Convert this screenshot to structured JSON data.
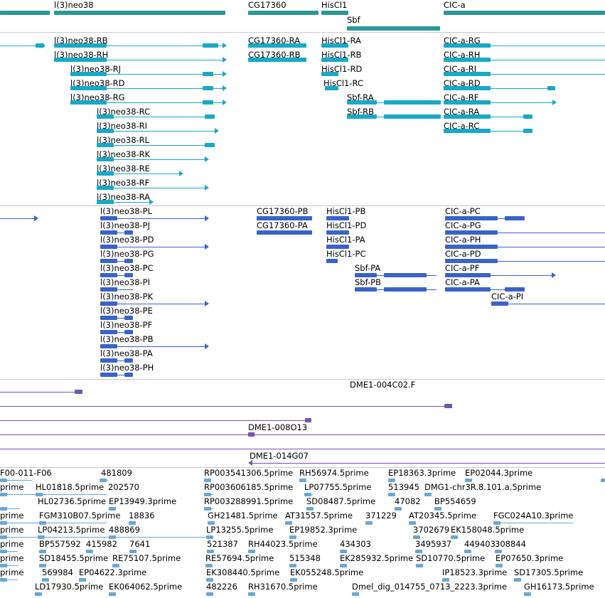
{
  "colors": {
    "gene": "#2a9797",
    "transcript": "#19a9c5",
    "protein": "#3a63c8",
    "clone": "#7852b0",
    "est": "#6aa7d3",
    "separator": "#c8c8c8"
  },
  "genes": [
    "l(3)neo38",
    "CG17360",
    "HisCl1",
    "Sbf",
    "CIC-a"
  ],
  "transcripts": [
    "l(3)neo38-RB",
    "CG17360-RA",
    "HisCl1-RA",
    "CIC-a-RG",
    "l(3)neo38-RH",
    "CG17360-RB",
    "HisCl1-RB",
    "CIC-a-RH",
    "l(3)neo38-RJ",
    "HisCl1-RD",
    "CIC-a-RI",
    "l(3)neo38-RD",
    "HisCl1-RC",
    "CIC-a-RD",
    "l(3)neo38-RG",
    "Sbf-RA",
    "CIC-a-RF",
    "l(3)neo38-RC",
    "Sbf-RB",
    "CIC-a-RA",
    "l(3)neo38-RI",
    "CIC-a-RC",
    "l(3)neo38-RL",
    "l(3)neo38-RK",
    "l(3)neo38-RE",
    "l(3)neo38-RF",
    "l(3)neo38-RA"
  ],
  "proteins": [
    "l(3)neo38-PL",
    "CG17360-PB",
    "HisCl1-PB",
    "CIC-a-PC",
    "l(3)neo38-PJ",
    "CG17360-PA",
    "HisCl1-PD",
    "CIC-a-PG",
    "l(3)neo38-PD",
    "HisCl1-PA",
    "CIC-a-PH",
    "l(3)neo38-PG",
    "HisCl1-PC",
    "CIC-a-PD",
    "l(3)neo38-PC",
    "Sbf-PA",
    "CIC-a-PF",
    "l(3)neo38-PI",
    "Sbf-PB",
    "CIC-a-PA",
    "l(3)neo38-PK",
    "CIC-a-PI",
    "l(3)neo38-PE",
    "l(3)neo38-PF",
    "l(3)neo38-PB",
    "l(3)neo38-PA",
    "l(3)neo38-PH"
  ],
  "clones": [
    "DME1-004C02.F",
    "DME1-008O13",
    "DME1-014G07"
  ],
  "ests": [
    "F00-011-F06",
    "481809",
    "RP003541306.5prime",
    "RH56974.5prime",
    "EP18363.3prime",
    "EP02044.3prime",
    "prime",
    "HL01818.5prime",
    "202570",
    "RP003606185.5prime",
    "LP07755.5prime",
    "513945",
    "DMG1-chr3R.8.101.a.5prime",
    "HL02736.5prime",
    "EP13949.3prime",
    "RP003288991.5prime",
    "SD08487.5prime",
    "47082",
    "BP554659",
    "FGM310B07.5prime",
    "18836",
    "GH21481.5prime",
    "AT31557.5prime",
    "371229",
    "AT20345.5prime",
    "FGC024A10.3prime",
    "LP04213.5prime",
    "488869",
    "LP13255.5prime",
    "EP19852.3prime",
    "3702679",
    "EK158048.5prime",
    "BP557592",
    "415982",
    "7641",
    "521387",
    "RH44023.5prime",
    "434303",
    "3495937",
    "449403",
    "308844",
    "SD18455.5prime",
    "RE75107.5prime",
    "RE57694.5prime",
    "515348",
    "EK285932.5prime",
    "SD10770.5prime",
    "EP07650.3prime",
    "569984",
    "EP04622.3prime",
    "EK308440.5prime",
    "EK055248.5prime",
    "IP18523.3prime",
    "SD17305.5prime",
    "LD17930.5prime",
    "EK064062.5prime",
    "482226",
    "RH31670.5prime",
    "Dmel_dig_014755_0713_2223.3prime",
    "GH16173.5prime"
  ]
}
